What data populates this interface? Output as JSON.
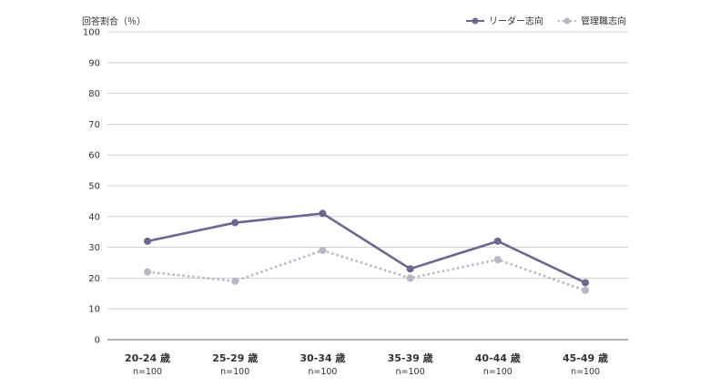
{
  "chart_data": {
    "type": "line",
    "ylabel": "回答割合（％）",
    "ylim": [
      0,
      100
    ],
    "yticks": [
      0,
      10,
      20,
      30,
      40,
      50,
      60,
      70,
      80,
      90,
      100
    ],
    "grid": true,
    "legend_position": "top-right",
    "categories": [
      "20-24 歳",
      "25-29 歳",
      "30-34 歳",
      "35-39 歳",
      "40-44 歳",
      "45-49 歳"
    ],
    "category_sublabels": [
      "n=100",
      "n=100",
      "n=100",
      "n=100",
      "n=100",
      "n=100"
    ],
    "series": [
      {
        "name": "リーダー志向",
        "values": [
          32,
          38,
          41,
          23,
          32,
          18.5
        ],
        "color": "#6e6591",
        "style": "solid"
      },
      {
        "name": "管理職志向",
        "values": [
          22,
          19,
          29,
          20,
          26,
          16
        ],
        "color": "#b9b7c7",
        "style": "dotted"
      }
    ]
  }
}
